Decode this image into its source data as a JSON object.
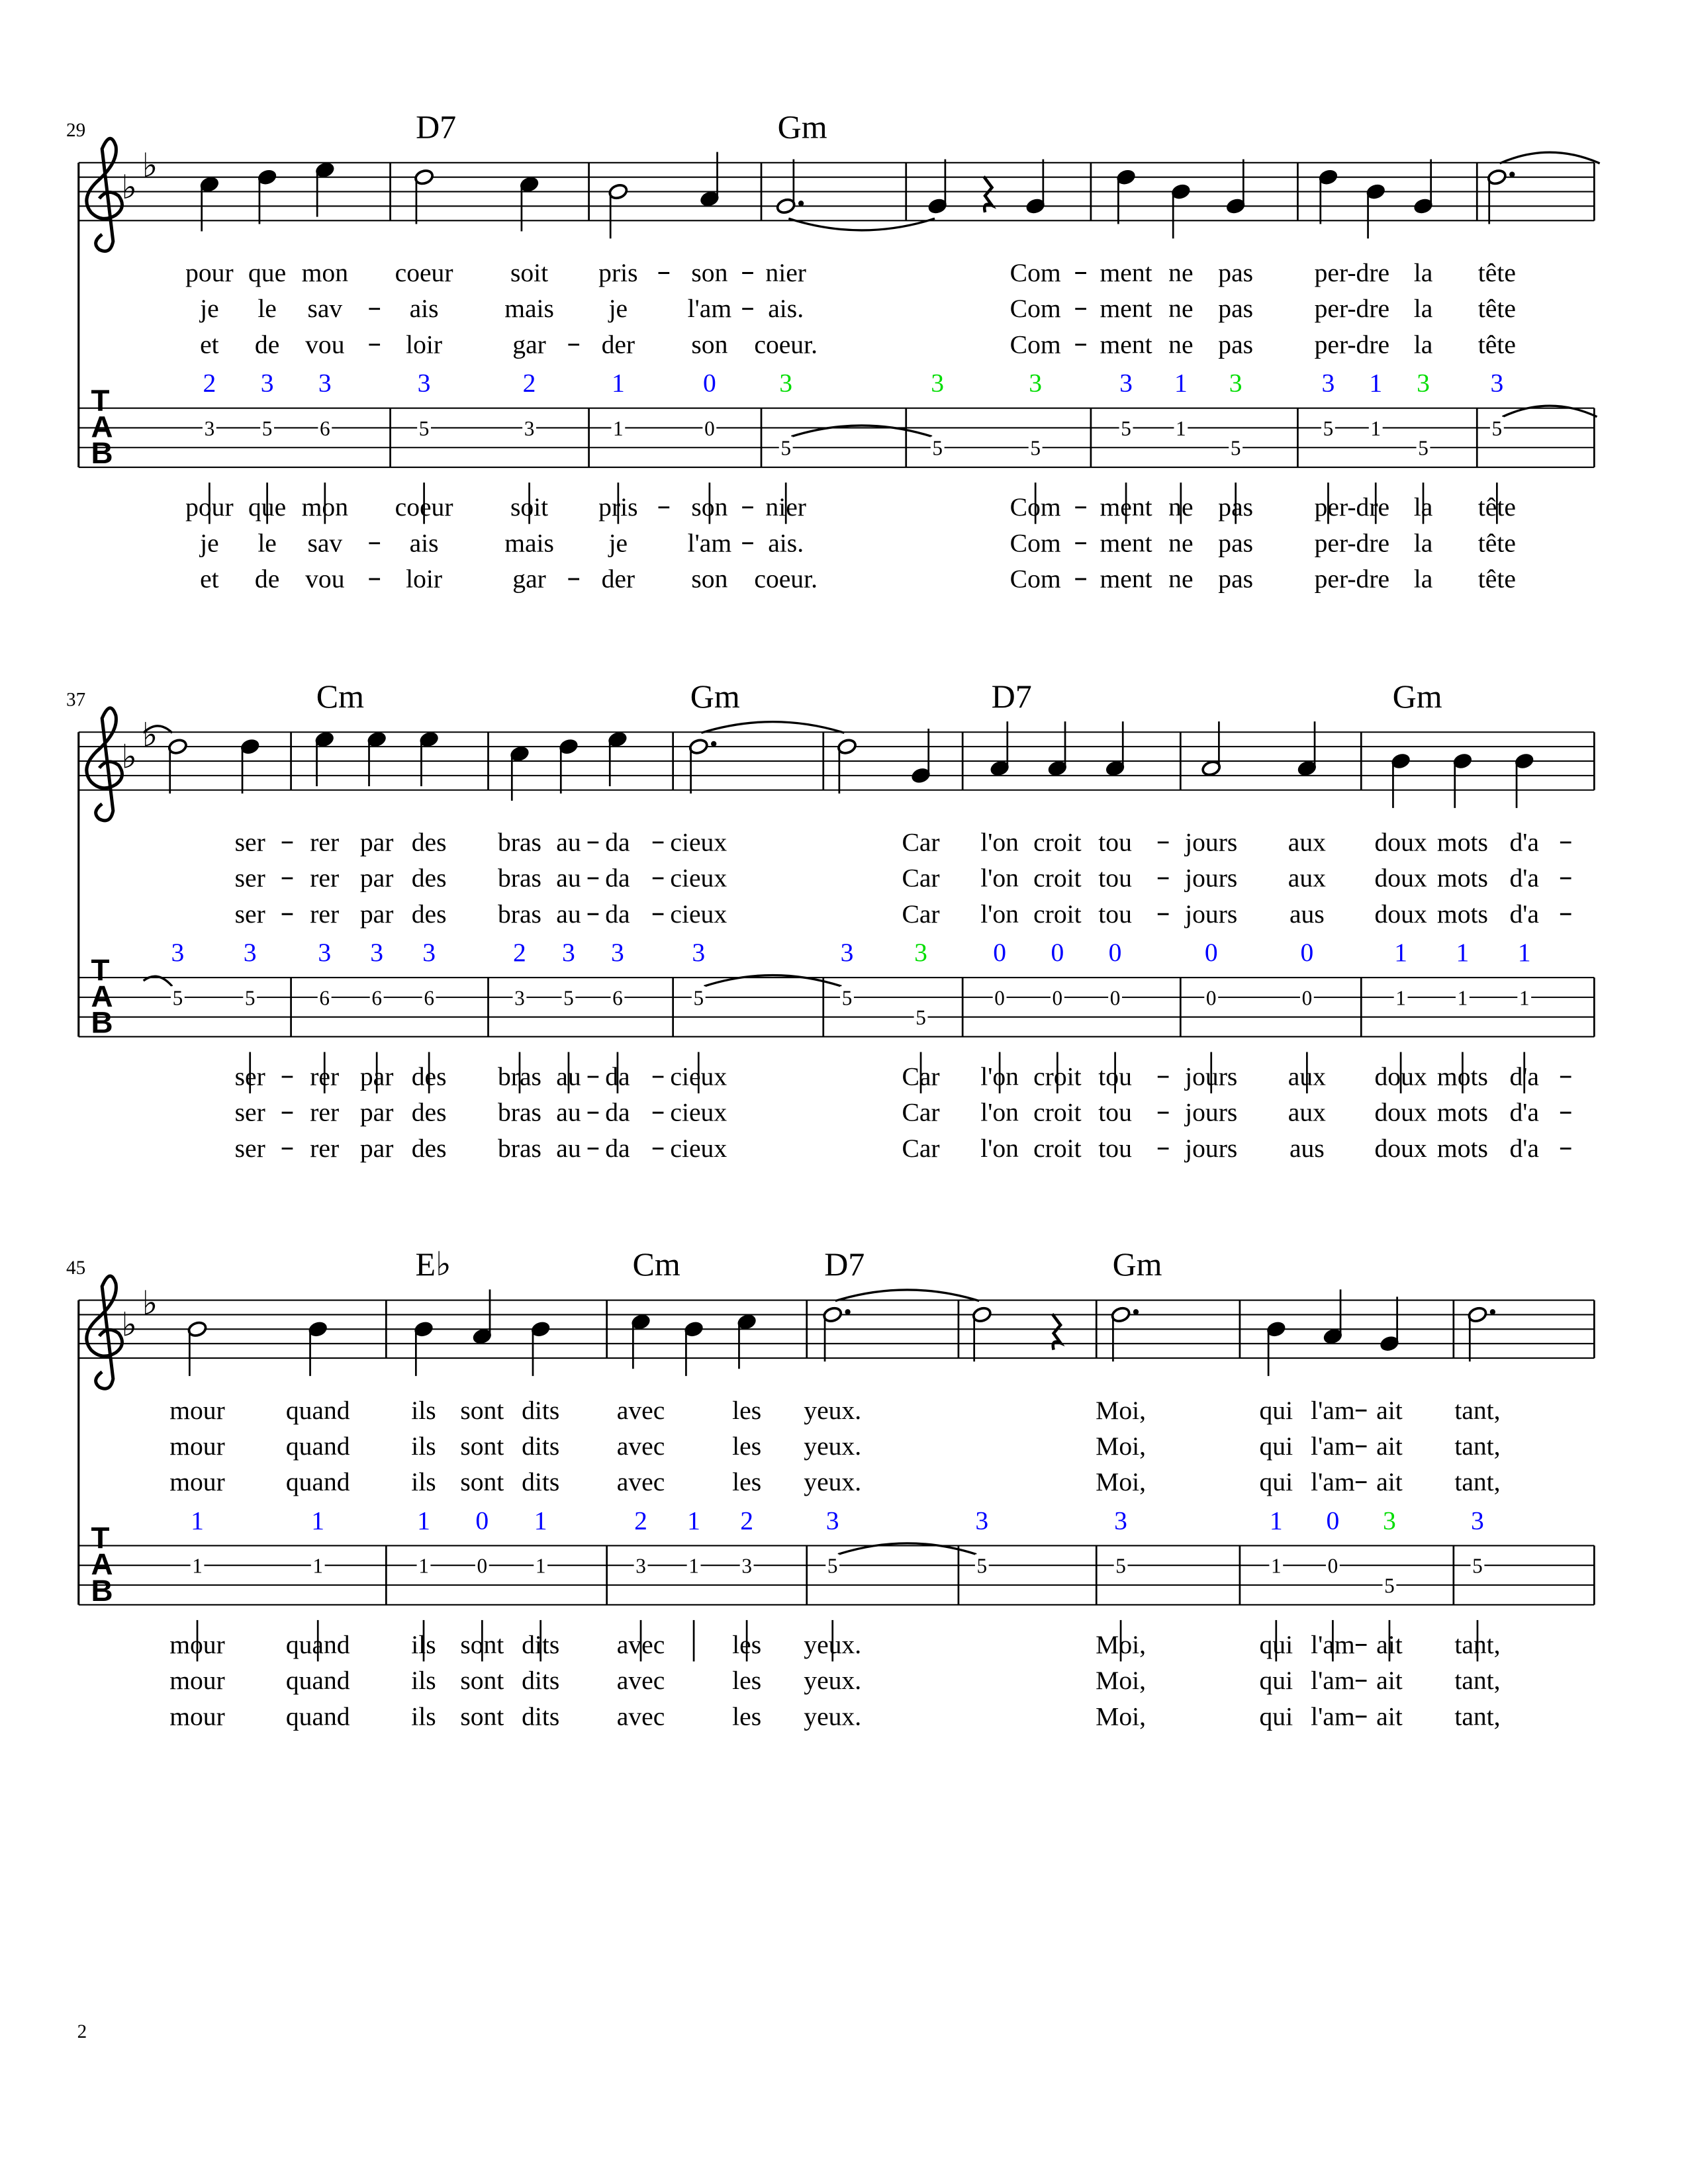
{
  "page_number": "2",
  "colors": {
    "b": "#0000ff",
    "g": "#00dd00",
    "ink": "#000000"
  },
  "tab_clef": [
    "T",
    "A",
    "B"
  ],
  "key_signature": [
    "B♭",
    "E♭"
  ],
  "systems": [
    {
      "number": "29",
      "measures": [
        {
          "chord": "",
          "notes": [
            {
              "p": "C5",
              "d": 1,
              "f": "2",
              "c": "b",
              "t": "3",
              "s": 2,
              "ly": [
                "pour",
                "je",
                "et"
              ]
            },
            {
              "p": "D5",
              "d": 1,
              "f": "3",
              "c": "b",
              "t": "5",
              "s": 2,
              "ly": [
                "que",
                "le",
                "de"
              ]
            },
            {
              "p": "E5",
              "d": 1,
              "f": "3",
              "c": "b",
              "t": "6",
              "s": 2,
              "ly": [
                "mon",
                "sav-",
                "vou-"
              ]
            }
          ]
        },
        {
          "chord": "D7",
          "notes": [
            {
              "p": "D5",
              "d": 2,
              "f": "3",
              "c": "b",
              "t": "5",
              "s": 2,
              "ly": [
                "coeur",
                "ais",
                "loir"
              ]
            },
            {
              "p": "C5",
              "d": 1,
              "f": "2",
              "c": "b",
              "t": "3",
              "s": 2,
              "ly": [
                "soit",
                "mais",
                "gar-"
              ]
            }
          ]
        },
        {
          "chord": "",
          "notes": [
            {
              "p": "B4",
              "d": 2,
              "f": "1",
              "c": "b",
              "t": "1",
              "s": 2,
              "ly": [
                "pris-",
                "je",
                "der"
              ]
            },
            {
              "p": "A4",
              "d": 1,
              "f": "0",
              "c": "b",
              "t": "0",
              "s": 2,
              "ly": [
                "son-",
                "l'am-",
                "son"
              ]
            }
          ]
        },
        {
          "chord": "Gm",
          "notes": [
            {
              "p": "G4",
              "d": 3,
              "f": "3",
              "c": "g",
              "t": "5",
              "s": 3,
              "tie": true,
              "ly": [
                "nier",
                "ais.",
                "coeur."
              ]
            }
          ]
        },
        {
          "chord": "",
          "notes": [
            {
              "p": "G4",
              "d": 1,
              "f": "3",
              "c": "g",
              "t": "5",
              "s": 3,
              "ly": null
            },
            {
              "rest": true,
              "d": 1
            },
            {
              "p": "G4",
              "d": 1,
              "f": "3",
              "c": "g",
              "t": "5",
              "s": 3,
              "ly": "Com-"
            }
          ]
        },
        {
          "chord": "",
          "notes": [
            {
              "p": "D5",
              "d": 1,
              "f": "3",
              "c": "b",
              "t": "5",
              "s": 2,
              "ly": "ment"
            },
            {
              "p": "B4",
              "d": 1,
              "f": "1",
              "c": "b",
              "t": "1",
              "s": 2,
              "ly": "ne"
            },
            {
              "p": "G4",
              "d": 1,
              "f": "3",
              "c": "g",
              "t": "5",
              "s": 3,
              "ly": "pas"
            }
          ]
        },
        {
          "chord": "",
          "notes": [
            {
              "p": "D5",
              "d": 1,
              "f": "3",
              "c": "b",
              "t": "5",
              "s": 2,
              "ly": "per-dre",
              "span": true
            },
            {
              "p": "B4",
              "d": 1,
              "f": "1",
              "c": "b",
              "t": "1",
              "s": 2,
              "ly": null
            },
            {
              "p": "G4",
              "d": 1,
              "f": "3",
              "c": "g",
              "t": "5",
              "s": 3,
              "ly": "la"
            }
          ]
        },
        {
          "chord": "",
          "notes": [
            {
              "p": "D5",
              "d": 3,
              "f": "3",
              "c": "b",
              "t": "5",
              "s": 2,
              "tie": true,
              "ly": "tête"
            }
          ]
        }
      ]
    },
    {
      "number": "37",
      "measures": [
        {
          "chord": "",
          "notes": [
            {
              "p": "D5",
              "d": 2,
              "f": "3",
              "c": "b",
              "t": "5",
              "s": 2,
              "tin": true,
              "ly": null
            },
            {
              "p": "D5",
              "d": 1,
              "f": "3",
              "c": "b",
              "t": "5",
              "s": 2,
              "ly": "ser-"
            }
          ]
        },
        {
          "chord": "Cm",
          "notes": [
            {
              "p": "E5",
              "d": 1,
              "f": "3",
              "c": "b",
              "t": "6",
              "s": 2,
              "ly": "rer"
            },
            {
              "p": "E5",
              "d": 1,
              "f": "3",
              "c": "b",
              "t": "6",
              "s": 2,
              "ly": "par"
            },
            {
              "p": "E5",
              "d": 1,
              "f": "3",
              "c": "b",
              "t": "6",
              "s": 2,
              "ly": "des"
            }
          ]
        },
        {
          "chord": "",
          "notes": [
            {
              "p": "C5",
              "d": 1,
              "f": "2",
              "c": "b",
              "t": "3",
              "s": 2,
              "ly": "bras"
            },
            {
              "p": "D5",
              "d": 1,
              "f": "3",
              "c": "b",
              "t": "5",
              "s": 2,
              "ly": "au-"
            },
            {
              "p": "E5",
              "d": 1,
              "f": "3",
              "c": "b",
              "t": "6",
              "s": 2,
              "ly": "da-"
            }
          ]
        },
        {
          "chord": "Gm",
          "notes": [
            {
              "p": "D5",
              "d": 3,
              "f": "3",
              "c": "b",
              "t": "5",
              "s": 2,
              "tie": true,
              "ly": "cieux"
            }
          ]
        },
        {
          "chord": "",
          "notes": [
            {
              "p": "D5",
              "d": 2,
              "f": "3",
              "c": "b",
              "t": "5",
              "s": 2,
              "ly": null
            },
            {
              "p": "G4",
              "d": 1,
              "f": "3",
              "c": "g",
              "t": "5",
              "s": 3,
              "ly": "Car"
            }
          ]
        },
        {
          "chord": "D7",
          "notes": [
            {
              "p": "A4",
              "d": 1,
              "f": "0",
              "c": "b",
              "t": "0",
              "s": 2,
              "ly": "l'on"
            },
            {
              "p": "A4",
              "d": 1,
              "f": "0",
              "c": "b",
              "t": "0",
              "s": 2,
              "ly": "croit"
            },
            {
              "p": "A4",
              "d": 1,
              "f": "0",
              "c": "b",
              "t": "0",
              "s": 2,
              "ly": "tou-"
            }
          ]
        },
        {
          "chord": "",
          "notes": [
            {
              "p": "A4",
              "d": 2,
              "f": "0",
              "c": "b",
              "t": "0",
              "s": 2,
              "ly": "jours"
            },
            {
              "p": "A4",
              "d": 1,
              "f": "0",
              "c": "b",
              "t": "0",
              "s": 2,
              "ly": [
                "aux",
                "aux",
                "aus"
              ]
            }
          ]
        },
        {
          "chord": "Gm",
          "notes": [
            {
              "p": "B4",
              "d": 1,
              "f": "1",
              "c": "b",
              "t": "1",
              "s": 2,
              "ly": "doux"
            },
            {
              "p": "B4",
              "d": 1,
              "f": "1",
              "c": "b",
              "t": "1",
              "s": 2,
              "ly": "mots"
            },
            {
              "p": "B4",
              "d": 1,
              "f": "1",
              "c": "b",
              "t": "1",
              "s": 2,
              "ly": "d'a-"
            }
          ]
        }
      ]
    },
    {
      "number": "45",
      "measures": [
        {
          "chord": "",
          "notes": [
            {
              "p": "B4",
              "d": 2,
              "f": "1",
              "c": "b",
              "t": "1",
              "s": 2,
              "ly": "mour"
            },
            {
              "p": "B4",
              "d": 1,
              "f": "1",
              "c": "b",
              "t": "1",
              "s": 2,
              "ly": "quand"
            }
          ]
        },
        {
          "chord": "E♭",
          "notes": [
            {
              "p": "B4",
              "d": 1,
              "f": "1",
              "c": "b",
              "t": "1",
              "s": 2,
              "ly": "ils"
            },
            {
              "p": "A4",
              "d": 1,
              "f": "0",
              "c": "b",
              "t": "0",
              "s": 2,
              "ly": "sont"
            },
            {
              "p": "B4",
              "d": 1,
              "f": "1",
              "c": "b",
              "t": "1",
              "s": 2,
              "ly": "dits"
            }
          ]
        },
        {
          "chord": "Cm",
          "notes": [
            {
              "p": "C5",
              "d": 1,
              "f": "2",
              "c": "b",
              "t": "3",
              "s": 2,
              "ly": "avec"
            },
            {
              "p": "B4",
              "d": 1,
              "f": "1",
              "c": "b",
              "t": "1",
              "s": 2,
              "ly": null
            },
            {
              "p": "C5",
              "d": 1,
              "f": "2",
              "c": "b",
              "t": "3",
              "s": 2,
              "ly": "les"
            }
          ]
        },
        {
          "chord": "D7",
          "notes": [
            {
              "p": "D5",
              "d": 3,
              "f": "3",
              "c": "b",
              "t": "5",
              "s": 2,
              "tie": true,
              "ly": "yeux."
            }
          ]
        },
        {
          "chord": "",
          "notes": [
            {
              "p": "D5",
              "d": 2,
              "f": "3",
              "c": "b",
              "t": "5",
              "s": 2,
              "ly": null
            },
            {
              "rest": true,
              "d": 1
            }
          ]
        },
        {
          "chord": "Gm",
          "notes": [
            {
              "p": "D5",
              "d": 3,
              "f": "3",
              "c": "b",
              "t": "5",
              "s": 2,
              "ly": "Moi,"
            }
          ]
        },
        {
          "chord": "",
          "notes": [
            {
              "p": "B4",
              "d": 1,
              "f": "1",
              "c": "b",
              "t": "1",
              "s": 2,
              "ly": "qui"
            },
            {
              "p": "A4",
              "d": 1,
              "f": "0",
              "c": "b",
              "t": "0",
              "s": 2,
              "ly": "l'am-"
            },
            {
              "p": "G4",
              "d": 1,
              "f": "3",
              "c": "g",
              "t": "5",
              "s": 3,
              "ly": "ait"
            }
          ]
        },
        {
          "chord": "",
          "notes": [
            {
              "p": "D5",
              "d": 3,
              "f": "3",
              "c": "b",
              "t": "5",
              "s": 2,
              "ly": "tant,"
            }
          ]
        }
      ]
    }
  ]
}
